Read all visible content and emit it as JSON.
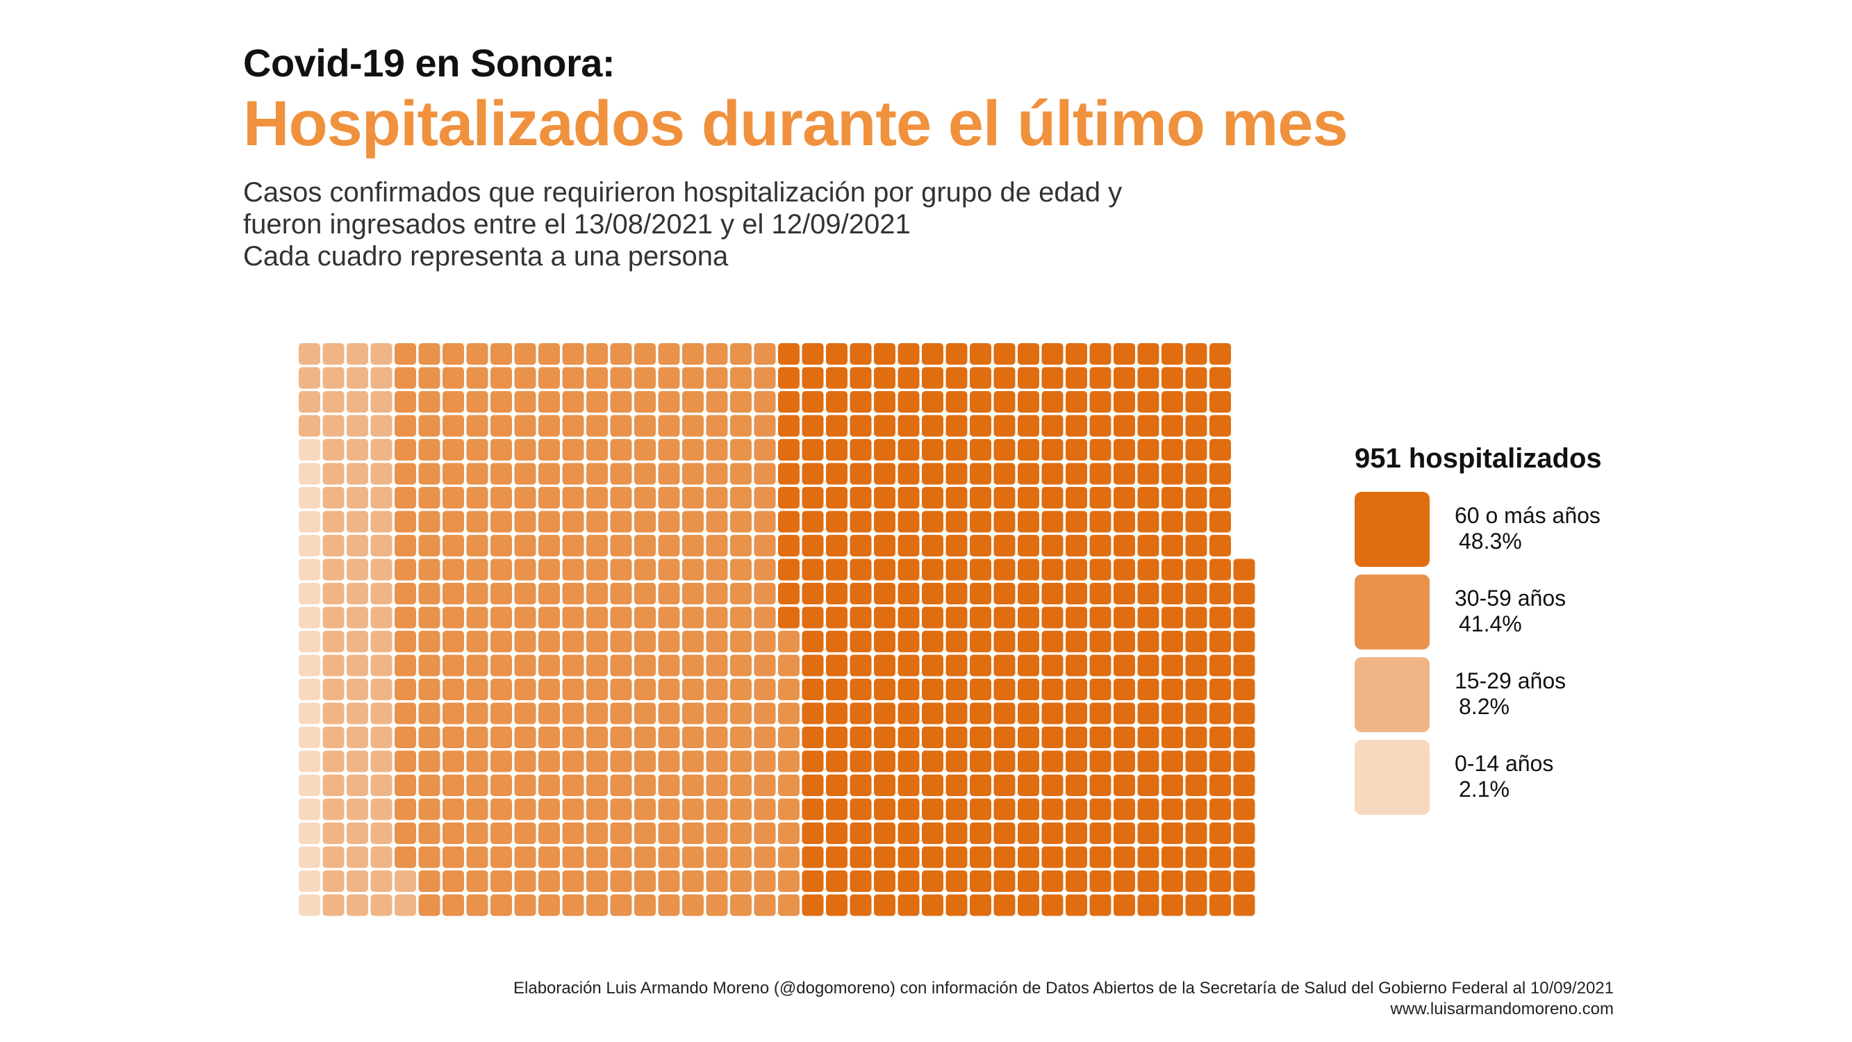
{
  "header": {
    "kicker": "Covid-19 en Sonora:",
    "title": "Hospitalizados durante el último mes",
    "subtitle_lines": [
      "Casos confirmados que requirieron hospitalización por grupo de edad y",
      "fueron ingresados entre el 13/08/2021 y el 12/09/2021",
      "Cada cuadro representa a una persona"
    ]
  },
  "legend": {
    "title": "951 hospitalizados",
    "items": [
      {
        "label": "60 o más años",
        "pct": "48.3%",
        "color": "#e06d10"
      },
      {
        "label": "30-59 años",
        "pct": "41.4%",
        "color": "#e8924b"
      },
      {
        "label": "15-29 años",
        "pct": "8.2%",
        "color": "#f0b586"
      },
      {
        "label": "0-14 años",
        "pct": "2.1%",
        "color": "#f7d9c0"
      }
    ]
  },
  "chart_data": {
    "type": "waffle",
    "total": 951,
    "unit": "persona",
    "columns": 40,
    "fill_order": "column-major, bottom to top, left to right",
    "categories": [
      "0-14 años",
      "15-29 años",
      "30-59 años",
      "60 o más años"
    ],
    "values": [
      20,
      78,
      394,
      459
    ],
    "percentages": [
      2.1,
      8.2,
      41.4,
      48.3
    ],
    "colors": [
      "#f7d9c0",
      "#f0b586",
      "#e8924b",
      "#e06d10"
    ]
  },
  "footer": {
    "credit": "Elaboración Luis Armando Moreno (@dogomoreno) con información de Datos Abiertos de la Secretaría de Salud del Gobierno Federal al 10/09/2021",
    "website": "www.luisarmandomoreno.com"
  }
}
